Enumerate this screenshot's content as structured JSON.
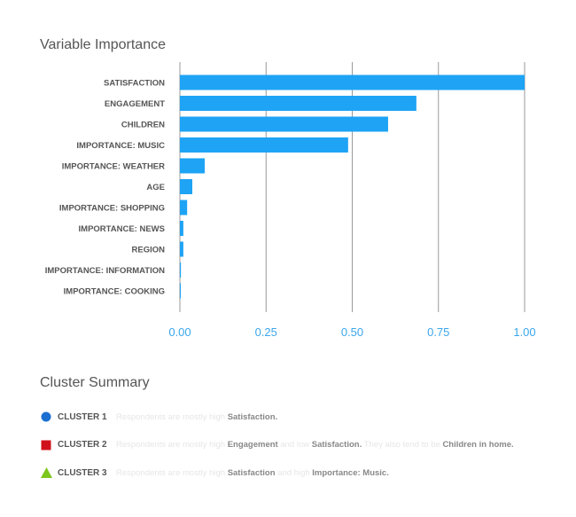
{
  "chart_data": {
    "type": "bar",
    "orientation": "horizontal",
    "title": "Variable Importance",
    "categories": [
      "SATISFACTION",
      "ENGAGEMENT",
      "CHILDREN",
      "IMPORTANCE: MUSIC",
      "IMPORTANCE: WEATHER",
      "AGE",
      "IMPORTANCE: SHOPPING",
      "IMPORTANCE: NEWS",
      "REGION",
      "IMPORTANCE: INFORMATION",
      "IMPORTANCE: COOKING"
    ],
    "values": [
      1.0,
      0.686,
      0.604,
      0.488,
      0.072,
      0.036,
      0.021,
      0.01,
      0.01,
      0.003,
      0.001
    ],
    "xlim": [
      0,
      1
    ],
    "xticks": [
      "0.00",
      "0.25",
      "0.50",
      "0.75",
      "1.00"
    ],
    "grid": true,
    "bar_color": "#1ea3f5"
  },
  "cluster_summary": {
    "title": "Cluster Summary",
    "clusters": [
      {
        "name": "CLUSTER 1",
        "icon": "circle",
        "color": "#1a6fd1",
        "parts": [
          {
            "t": "Respondents are mostly high ",
            "s": false
          },
          {
            "t": "Satisfaction.",
            "s": true
          }
        ]
      },
      {
        "name": "CLUSTER 2",
        "icon": "square",
        "color": "#d0111b",
        "parts": [
          {
            "t": "Respondents are mostly high ",
            "s": false
          },
          {
            "t": "Engagement",
            "s": true
          },
          {
            "t": " and low ",
            "s": false
          },
          {
            "t": "Satisfaction.",
            "s": true
          },
          {
            "t": " They also tend to be ",
            "s": false
          },
          {
            "t": "Children in home.",
            "s": true
          }
        ]
      },
      {
        "name": "CLUSTER 3",
        "icon": "triangle",
        "color": "#7dc61e",
        "parts": [
          {
            "t": "Respondents are mostly high ",
            "s": false
          },
          {
            "t": "Satisfaction",
            "s": true
          },
          {
            "t": " and high ",
            "s": false
          },
          {
            "t": "Importance: Music.",
            "s": true
          }
        ]
      }
    ]
  }
}
